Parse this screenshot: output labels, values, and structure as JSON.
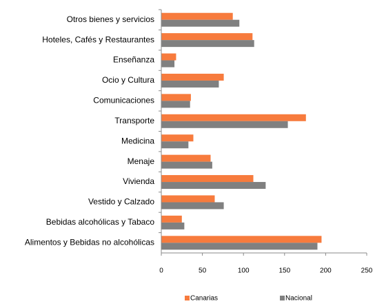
{
  "chart_data": {
    "type": "hbar",
    "categories": [
      "Otros bienes y servicios",
      "Hoteles, Cafés y Restaurantes",
      "Enseñanza",
      "Ocio y Cultura",
      "Comunicaciones",
      "Transporte",
      "Medicina",
      "Menaje",
      "Vivienda",
      "Vestido y Calzado",
      "Bebidas alcohólicas y Tabaco",
      "Alimentos y Bebidas no alcohólicas"
    ],
    "series": [
      {
        "name": "Canarias",
        "color": "#f77b3d",
        "values": [
          87,
          111,
          18,
          76,
          36,
          176,
          39,
          60,
          112,
          65,
          25,
          195
        ]
      },
      {
        "name": "Nacional",
        "color": "#808080",
        "values": [
          95,
          113,
          16,
          70,
          35,
          154,
          33,
          62,
          127,
          76,
          28,
          190
        ]
      }
    ],
    "xlim": [
      0,
      250
    ],
    "xticks": [
      0,
      50,
      100,
      150,
      200,
      250
    ],
    "legend": "bottom"
  }
}
